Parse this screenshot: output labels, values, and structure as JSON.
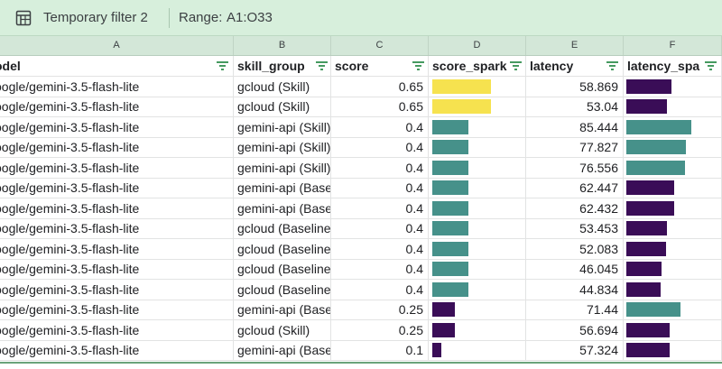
{
  "filter_bar": {
    "filter_name": "Temporary filter 2",
    "range_label": "Range:",
    "range_value": "A1:O33"
  },
  "column_letters": [
    "A",
    "B",
    "C",
    "D",
    "E",
    "F"
  ],
  "headers": [
    "odel",
    "skill_group",
    "score",
    "score_spark",
    "latency",
    "latency_spa"
  ],
  "colors": {
    "spark_high": "#f6e24f",
    "spark_mid": "#46918a",
    "spark_low": "#3a0d57",
    "filter_bar_bg": "#d7efdc"
  },
  "rows": [
    {
      "model": "oogle/gemini-3.5-flash-lite",
      "skill_group": "gcloud (Skill)",
      "score": "0.65",
      "latency": "58.869",
      "score_spark": 0.65,
      "latency_spark": 58.869
    },
    {
      "model": "oogle/gemini-3.5-flash-lite",
      "skill_group": "gcloud (Skill)",
      "score": "0.65",
      "latency": "53.04",
      "score_spark": 0.65,
      "latency_spark": 53.04
    },
    {
      "model": "oogle/gemini-3.5-flash-lite",
      "skill_group": "gemini-api (Skill)",
      "score": "0.4",
      "latency": "85.444",
      "score_spark": 0.4,
      "latency_spark": 85.444
    },
    {
      "model": "oogle/gemini-3.5-flash-lite",
      "skill_group": "gemini-api (Skill)",
      "score": "0.4",
      "latency": "77.827",
      "score_spark": 0.4,
      "latency_spark": 77.827
    },
    {
      "model": "oogle/gemini-3.5-flash-lite",
      "skill_group": "gemini-api (Skill)",
      "score": "0.4",
      "latency": "76.556",
      "score_spark": 0.4,
      "latency_spark": 76.556
    },
    {
      "model": "oogle/gemini-3.5-flash-lite",
      "skill_group": "gemini-api (Baseline)",
      "score": "0.4",
      "latency": "62.447",
      "score_spark": 0.4,
      "latency_spark": 62.447
    },
    {
      "model": "oogle/gemini-3.5-flash-lite",
      "skill_group": "gemini-api (Baseline)",
      "score": "0.4",
      "latency": "62.432",
      "score_spark": 0.4,
      "latency_spark": 62.432
    },
    {
      "model": "oogle/gemini-3.5-flash-lite",
      "skill_group": "gcloud (Baseline)",
      "score": "0.4",
      "latency": "53.453",
      "score_spark": 0.4,
      "latency_spark": 53.453
    },
    {
      "model": "oogle/gemini-3.5-flash-lite",
      "skill_group": "gcloud (Baseline)",
      "score": "0.4",
      "latency": "52.083",
      "score_spark": 0.4,
      "latency_spark": 52.083
    },
    {
      "model": "oogle/gemini-3.5-flash-lite",
      "skill_group": "gcloud (Baseline)",
      "score": "0.4",
      "latency": "46.045",
      "score_spark": 0.4,
      "latency_spark": 46.045
    },
    {
      "model": "oogle/gemini-3.5-flash-lite",
      "skill_group": "gcloud (Baseline)",
      "score": "0.4",
      "latency": "44.834",
      "score_spark": 0.4,
      "latency_spark": 44.834
    },
    {
      "model": "oogle/gemini-3.5-flash-lite",
      "skill_group": "gemini-api (Baseline)",
      "score": "0.25",
      "latency": "71.44",
      "score_spark": 0.25,
      "latency_spark": 71.44
    },
    {
      "model": "oogle/gemini-3.5-flash-lite",
      "skill_group": "gcloud (Skill)",
      "score": "0.25",
      "latency": "56.694",
      "score_spark": 0.25,
      "latency_spark": 56.694
    },
    {
      "model": "oogle/gemini-3.5-flash-lite",
      "skill_group": "gemini-api (Baseline)",
      "score": "0.1",
      "latency": "57.324",
      "score_spark": 0.1,
      "latency_spark": 57.324
    }
  ]
}
